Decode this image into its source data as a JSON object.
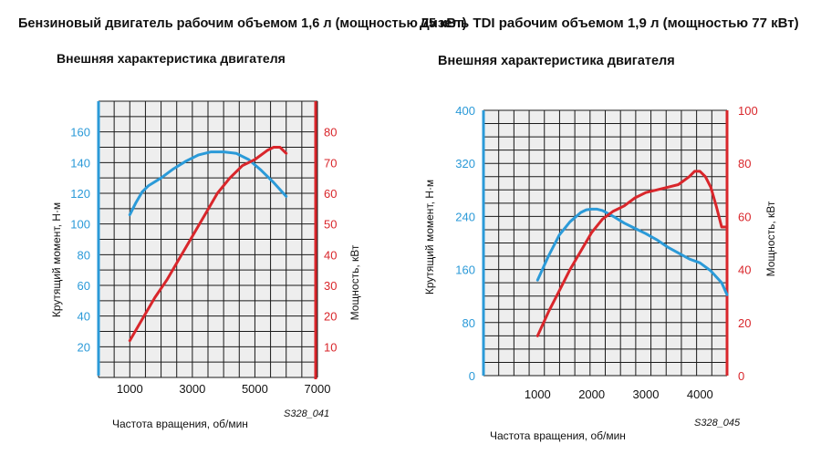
{
  "colors": {
    "torque": "#2b9ad8",
    "power": "#d9262b",
    "grid": "#1a1a1a",
    "panel": "#eeeeee"
  },
  "chart_data": [
    {
      "type": "line",
      "heading": "Бензиновый двигатель рабочим объемом 1,6 л (мощностью 75 кВт)",
      "title": "Внешняя характеристика двигателя",
      "xlabel": "Частота вращения, об/мин",
      "ylabel_left": "Крутящий момент, Н·м",
      "ylabel_right": "Мощность, кВт",
      "code": "S328_041",
      "x_ticks": [
        "1000",
        "3000",
        "5000",
        "7000"
      ],
      "y_left_ticks": [
        "20",
        "40",
        "60",
        "80",
        "100",
        "120",
        "140",
        "160"
      ],
      "y_right_ticks": [
        "10",
        "20",
        "30",
        "40",
        "50",
        "60",
        "70",
        "80"
      ],
      "xlim": [
        0,
        7000
      ],
      "ylim_left": [
        0,
        180
      ],
      "ylim_right": [
        0,
        90
      ],
      "grid": true,
      "series": [
        {
          "name": "Крутящий момент",
          "axis": "left",
          "x": [
            1000,
            1200,
            1400,
            1600,
            2000,
            2400,
            2800,
            3200,
            3600,
            4000,
            4400,
            4800,
            5200,
            5600,
            6000
          ],
          "values": [
            106,
            114,
            121,
            125,
            130,
            136,
            141,
            145,
            147,
            147,
            146,
            142,
            135,
            127,
            118
          ]
        },
        {
          "name": "Мощность",
          "axis": "right",
          "x": [
            1000,
            1400,
            1800,
            2200,
            2600,
            3000,
            3400,
            3800,
            4200,
            4600,
            5000,
            5400,
            5600,
            5800,
            6000
          ],
          "values": [
            12,
            19,
            26,
            32,
            39,
            46,
            53,
            60,
            65,
            69,
            71,
            74,
            75,
            75,
            73
          ]
        }
      ]
    },
    {
      "type": "line",
      "heading": "Дизель TDI рабочим объемом 1,9 л (мощностью 77 кВт)",
      "title": "Внешняя характеристика двигателя",
      "xlabel": "Частота вращения, об/мин",
      "ylabel_left": "Крутящий момент, Н·м",
      "ylabel_right": "Мощность, кВт",
      "code": "S328_045",
      "x_ticks": [
        "1000",
        "2000",
        "3000",
        "4000"
      ],
      "y_left_ticks": [
        "0",
        "80",
        "160",
        "240",
        "320",
        "400"
      ],
      "y_right_ticks": [
        "0",
        "20",
        "40",
        "60",
        "80",
        "100"
      ],
      "xlim": [
        0,
        4500
      ],
      "ylim_left": [
        0,
        400
      ],
      "ylim_right": [
        0,
        100
      ],
      "grid": true,
      "series": [
        {
          "name": "Крутящий момент",
          "axis": "left",
          "x": [
            1000,
            1200,
            1400,
            1600,
            1800,
            1900,
            2000,
            2100,
            2200,
            2400,
            2600,
            2800,
            3000,
            3200,
            3400,
            3600,
            3800,
            4000,
            4200,
            4400,
            4500
          ],
          "values": [
            144,
            180,
            212,
            232,
            246,
            250,
            251,
            251,
            249,
            240,
            230,
            222,
            214,
            205,
            194,
            185,
            176,
            170,
            158,
            140,
            122
          ]
        },
        {
          "name": "Мощность",
          "axis": "right",
          "x": [
            1000,
            1200,
            1400,
            1600,
            1800,
            2000,
            2200,
            2400,
            2600,
            2800,
            3000,
            3200,
            3400,
            3600,
            3800,
            3900,
            4000,
            4100,
            4200,
            4300,
            4400,
            4500
          ],
          "values": [
            15,
            24,
            32,
            40,
            47,
            54,
            59,
            62,
            64,
            67,
            69,
            70,
            71,
            72,
            75,
            77,
            77,
            75,
            71,
            64,
            56,
            56
          ]
        }
      ]
    }
  ]
}
